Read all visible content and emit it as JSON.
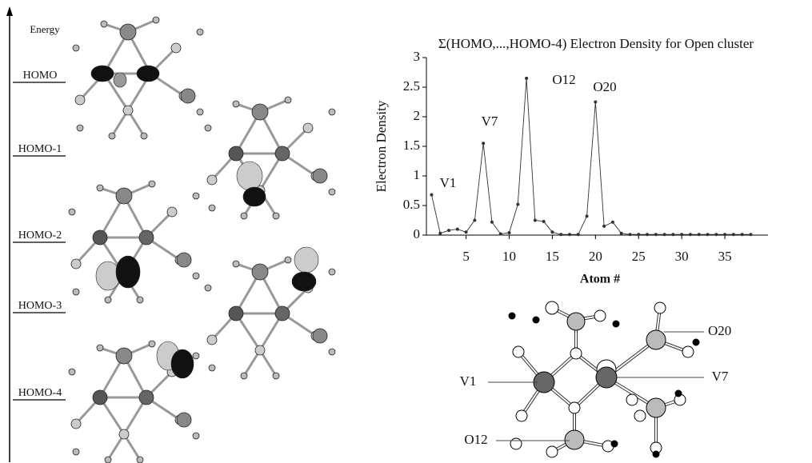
{
  "chart_data": {
    "type": "line",
    "title": "Σ(HOMO,...,HOMO-4) Electron Density for Open cluster",
    "x_label": "Atom #",
    "y_label": "Electron Density",
    "x": [
      1,
      2,
      3,
      4,
      5,
      6,
      7,
      8,
      9,
      10,
      11,
      12,
      13,
      14,
      15,
      16,
      17,
      18,
      19,
      20,
      21,
      22,
      23,
      24,
      25,
      26,
      27,
      28,
      29,
      30,
      31,
      32,
      33,
      34,
      35,
      36,
      37,
      38
    ],
    "series": [
      {
        "name": "Electron Density",
        "color": "#333333",
        "values": [
          0.68,
          0.03,
          0.08,
          0.1,
          0.05,
          0.25,
          1.55,
          0.22,
          0.02,
          0.04,
          0.52,
          2.65,
          0.25,
          0.23,
          0.05,
          0.01,
          0.01,
          0.01,
          0.32,
          2.25,
          0.15,
          0.22,
          0.03,
          0.01,
          0.01,
          0.01,
          0.01,
          0.01,
          0.01,
          0.01,
          0.01,
          0.01,
          0.01,
          0.01,
          0.01,
          0.01,
          0.01,
          0.01
        ]
      }
    ],
    "xlim": [
      0.4,
      40
    ],
    "xticks": [
      5,
      10,
      15,
      20,
      25,
      30,
      35
    ],
    "ylim": [
      0,
      3
    ],
    "yticks": [
      0,
      0.5,
      1,
      1.5,
      2,
      2.5,
      3
    ],
    "annotations": [
      "V1",
      "V7",
      "O12",
      "O20"
    ]
  },
  "energy_diagram": {
    "axis_label": "Energy",
    "levels": [
      "HOMO",
      "HOMO-1",
      "HOMO-2",
      "HOMO-3",
      "HOMO-4"
    ]
  },
  "structure_labels": [
    "O20",
    "V1",
    "V7",
    "O12"
  ]
}
